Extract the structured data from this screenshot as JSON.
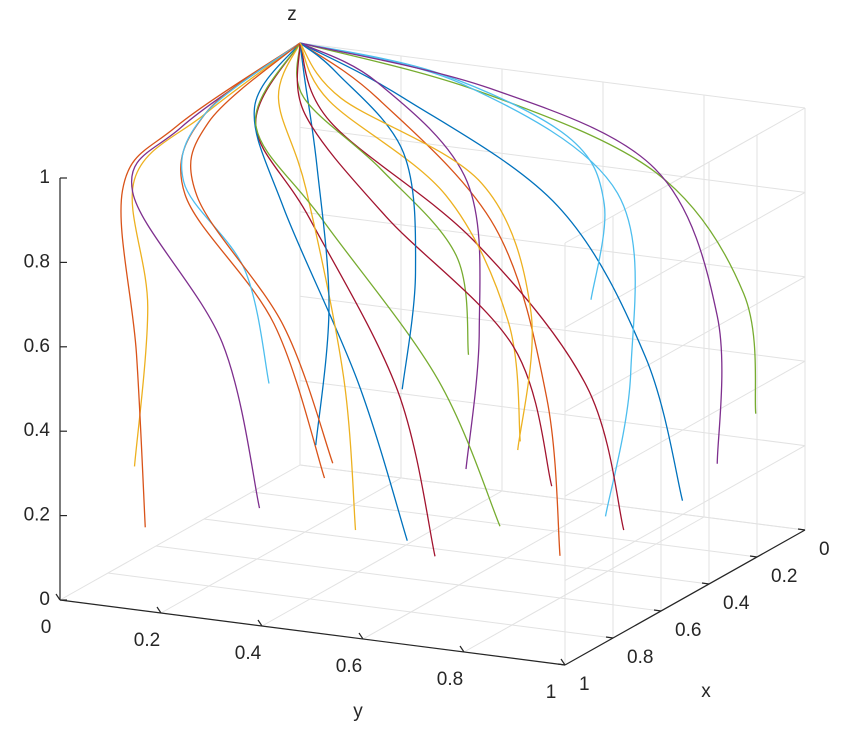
{
  "chart_data": {
    "type": "line3d",
    "x_label": "x",
    "y_label": "y",
    "z_label": "z",
    "xlim": [
      0,
      1
    ],
    "ylim": [
      0,
      1
    ],
    "zlim": [
      0,
      1
    ],
    "xticks": [
      0,
      0.2,
      0.4,
      0.6,
      0.8,
      1
    ],
    "yticks": [
      0,
      0.2,
      0.4,
      0.6,
      0.8,
      1
    ],
    "zticks": [
      0,
      0.2,
      0.4,
      0.6,
      0.8,
      1
    ],
    "grid": true,
    "series": [
      {
        "color": "#0072BD",
        "x": [
          0.3,
          0.35,
          0.4,
          0.2,
          0
        ],
        "y": [
          0.9,
          0.85,
          0.7,
          0.3,
          0
        ],
        "z": [
          0.15,
          0.5,
          0.85,
          0.98,
          1
        ]
      },
      {
        "color": "#D95319",
        "x": [
          0.6,
          0.55,
          0.45,
          0.2,
          0
        ],
        "y": [
          0.8,
          0.75,
          0.6,
          0.25,
          0
        ],
        "z": [
          0.1,
          0.45,
          0.8,
          0.97,
          1
        ]
      },
      {
        "color": "#EDB120",
        "x": [
          0.9,
          0.95,
          0.9,
          0.5,
          0
        ],
        "y": [
          0.1,
          0.15,
          0.1,
          0.05,
          0
        ],
        "z": [
          0.3,
          0.7,
          0.98,
          1,
          1
        ]
      },
      {
        "color": "#7E2F8E",
        "x": [
          0.8,
          0.85,
          0.95,
          0.6,
          0
        ],
        "y": [
          0.3,
          0.25,
          0.12,
          0.05,
          0
        ],
        "z": [
          0.2,
          0.6,
          0.97,
          1,
          1
        ]
      },
      {
        "color": "#77AC30",
        "x": [
          0.1,
          0.15,
          0.2,
          0.1,
          0
        ],
        "y": [
          0.95,
          0.95,
          0.8,
          0.4,
          0
        ],
        "z": [
          0.3,
          0.6,
          0.88,
          0.98,
          1
        ]
      },
      {
        "color": "#4DBEEE",
        "x": [
          0.2,
          0.2,
          0.15,
          0.05,
          0
        ],
        "y": [
          0.7,
          0.75,
          0.7,
          0.35,
          0
        ],
        "z": [
          0.05,
          0.4,
          0.8,
          0.97,
          1
        ]
      },
      {
        "color": "#A2142F",
        "x": [
          0.7,
          0.75,
          0.8,
          0.5,
          0
        ],
        "y": [
          0.6,
          0.55,
          0.4,
          0.15,
          0
        ],
        "z": [
          0.1,
          0.5,
          0.9,
          0.99,
          1
        ]
      },
      {
        "color": "#0072BD",
        "x": [
          0.5,
          0.6,
          0.7,
          0.4,
          0
        ],
        "y": [
          0.45,
          0.4,
          0.3,
          0.1,
          0
        ],
        "z": [
          0.05,
          0.45,
          0.88,
          0.99,
          1
        ]
      },
      {
        "color": "#D95319",
        "x": [
          0.95,
          0.95,
          0.9,
          0.5,
          0
        ],
        "y": [
          0.5,
          0.4,
          0.2,
          0.05,
          0
        ],
        "z": [
          0.35,
          0.7,
          0.96,
          1,
          1
        ]
      },
      {
        "color": "#EDB120",
        "x": [
          0.4,
          0.45,
          0.5,
          0.3,
          0
        ],
        "y": [
          0.3,
          0.3,
          0.25,
          0.1,
          0
        ],
        "z": [
          0.02,
          0.4,
          0.85,
          0.98,
          1
        ]
      },
      {
        "color": "#7E2F8E",
        "x": [
          0.15,
          0.2,
          0.25,
          0.1,
          0
        ],
        "y": [
          0.4,
          0.45,
          0.45,
          0.2,
          0
        ],
        "z": [
          0.1,
          0.45,
          0.82,
          0.97,
          1
        ]
      },
      {
        "color": "#77AC30",
        "x": [
          0.85,
          0.9,
          0.85,
          0.5,
          0
        ],
        "y": [
          0.8,
          0.7,
          0.45,
          0.15,
          0
        ],
        "z": [
          0.25,
          0.6,
          0.92,
          0.99,
          1
        ]
      },
      {
        "color": "#4DBEEE",
        "x": [
          0.05,
          0.1,
          0.15,
          0.05,
          0
        ],
        "y": [
          0.6,
          0.65,
          0.6,
          0.3,
          0
        ],
        "z": [
          0.5,
          0.75,
          0.92,
          0.99,
          1
        ]
      },
      {
        "color": "#A2142F",
        "x": [
          0.65,
          0.7,
          0.75,
          0.4,
          0
        ],
        "y": [
          0.95,
          0.9,
          0.7,
          0.25,
          0
        ],
        "z": [
          0.2,
          0.55,
          0.88,
          0.98,
          1
        ]
      },
      {
        "color": "#0072BD",
        "x": [
          0.25,
          0.3,
          0.35,
          0.15,
          0
        ],
        "y": [
          0.15,
          0.2,
          0.2,
          0.08,
          0
        ],
        "z": [
          0.15,
          0.5,
          0.85,
          0.98,
          1
        ]
      },
      {
        "color": "#D95319",
        "x": [
          0.75,
          0.85,
          0.95,
          0.6,
          0
        ],
        "y": [
          0.05,
          0.08,
          0.1,
          0.04,
          0
        ],
        "z": [
          0.1,
          0.55,
          0.97,
          1,
          1
        ]
      },
      {
        "color": "#EDB120",
        "x": [
          0.45,
          0.5,
          0.55,
          0.3,
          0
        ],
        "y": [
          0.65,
          0.65,
          0.55,
          0.2,
          0
        ],
        "z": [
          0.3,
          0.6,
          0.9,
          0.99,
          1
        ]
      },
      {
        "color": "#7E2F8E",
        "x": [
          0.05,
          0.05,
          0.1,
          0.05,
          0
        ],
        "y": [
          0.85,
          0.85,
          0.75,
          0.4,
          0
        ],
        "z": [
          0.15,
          0.5,
          0.85,
          0.97,
          1
        ]
      },
      {
        "color": "#77AC30",
        "x": [
          0.35,
          0.4,
          0.5,
          0.3,
          0
        ],
        "y": [
          0.5,
          0.5,
          0.4,
          0.15,
          0
        ],
        "z": [
          0.45,
          0.7,
          0.92,
          0.99,
          1
        ]
      },
      {
        "color": "#4DBEEE",
        "x": [
          0.55,
          0.65,
          0.8,
          0.5,
          0
        ],
        "y": [
          0.2,
          0.2,
          0.15,
          0.05,
          0
        ],
        "z": [
          0.4,
          0.7,
          0.95,
          1,
          1
        ]
      },
      {
        "color": "#A2142F",
        "x": [
          0.95,
          0.9,
          0.8,
          0.4,
          0
        ],
        "y": [
          0.95,
          0.85,
          0.55,
          0.2,
          0
        ],
        "z": [
          0.4,
          0.7,
          0.93,
          0.99,
          1
        ]
      },
      {
        "color": "#0072BD",
        "x": [
          0.1,
          0.15,
          0.2,
          0.1,
          0
        ],
        "y": [
          0.25,
          0.3,
          0.3,
          0.12,
          0
        ],
        "z": [
          0.25,
          0.55,
          0.85,
          0.98,
          1
        ]
      },
      {
        "color": "#D95319",
        "x": [
          0.6,
          0.7,
          0.85,
          0.55,
          0
        ],
        "y": [
          0.35,
          0.3,
          0.2,
          0.08,
          0
        ],
        "z": [
          0.25,
          0.6,
          0.94,
          1,
          1
        ]
      },
      {
        "color": "#EDB120",
        "x": [
          0.25,
          0.3,
          0.4,
          0.25,
          0
        ],
        "y": [
          0.55,
          0.6,
          0.55,
          0.2,
          0
        ],
        "z": [
          0.2,
          0.55,
          0.88,
          0.98,
          1
        ]
      }
    ]
  }
}
